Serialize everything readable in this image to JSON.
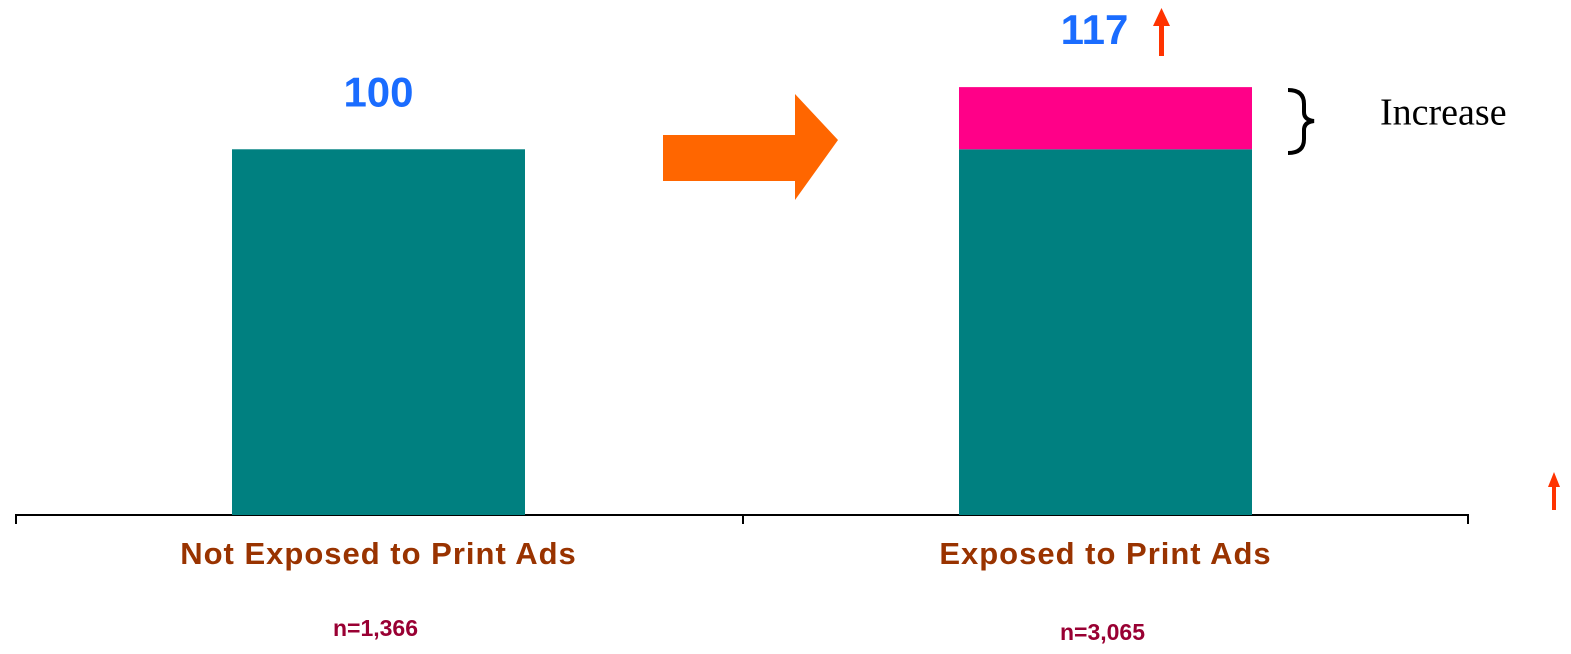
{
  "chart_data": {
    "type": "stacked_bar",
    "categories": [
      "Not Exposed to Print Ads",
      "Exposed to Print Ads"
    ],
    "series": [
      {
        "color": "#008080",
        "values": [
          100,
          100
        ]
      },
      {
        "color": "#ff0088",
        "values": [
          null,
          17
        ]
      }
    ],
    "totals": [
      100,
      117
    ],
    "sample_sizes": [
      "n=1,366",
      "n=3,065"
    ],
    "annotation": "Increase",
    "ylim": [
      0,
      140
    ]
  }
}
